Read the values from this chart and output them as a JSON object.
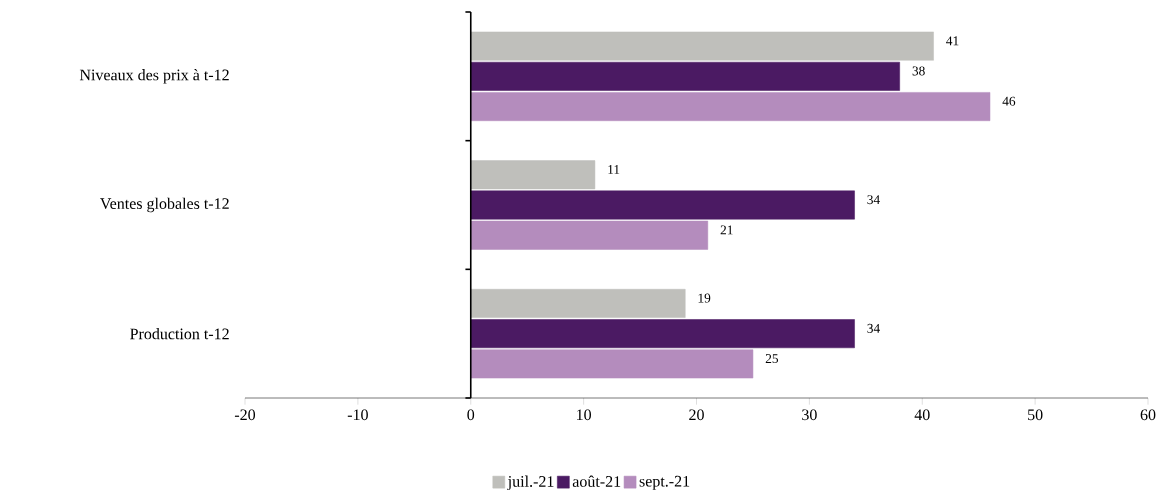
{
  "chart_data": {
    "type": "bar",
    "orientation": "horizontal",
    "categories": [
      "Niveaux des prix à t-12",
      "Ventes globales t-12",
      "Production t-12"
    ],
    "series": [
      {
        "name": "juil.-21",
        "color": "#bfbfbb",
        "values": [
          41,
          11,
          19
        ]
      },
      {
        "name": "août-21",
        "color": "#4b1a63",
        "values": [
          38,
          34,
          34
        ]
      },
      {
        "name": "sept.-21",
        "color": "#b48cbd",
        "values": [
          46,
          21,
          25
        ]
      }
    ],
    "xlim": [
      -20,
      60
    ],
    "xticks": [
      -20,
      -10,
      0,
      10,
      20,
      30,
      40,
      50,
      60
    ],
    "data_labels": true,
    "legend": "bottom"
  }
}
